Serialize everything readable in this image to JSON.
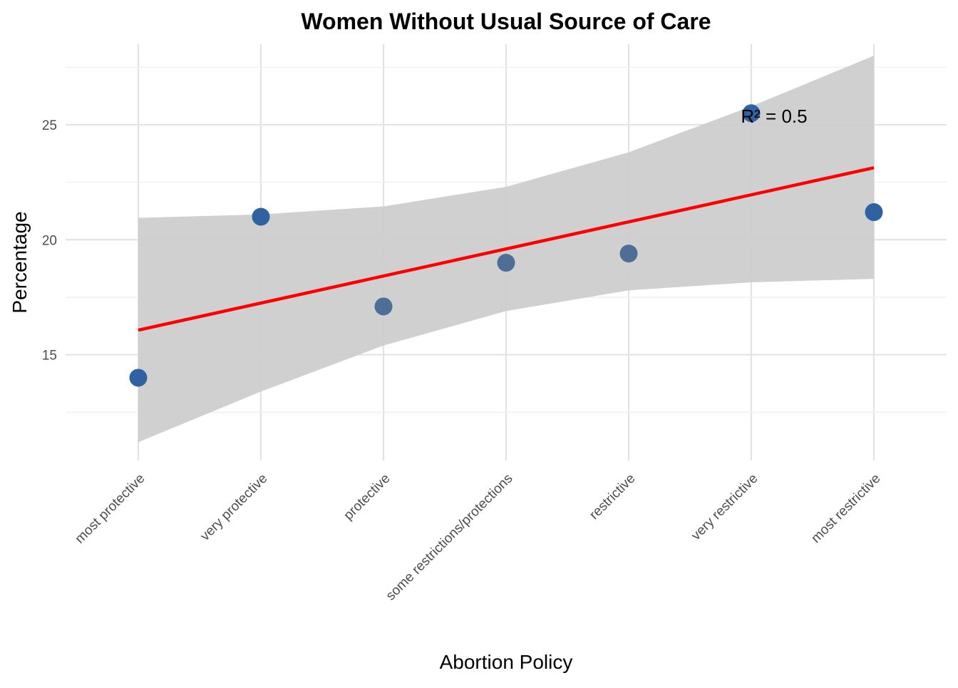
{
  "chart_data": {
    "type": "scatter",
    "title": "Women Without Usual Source of Care",
    "xlabel": "Abortion Policy",
    "ylabel": "Percentage",
    "categories": [
      "most protective",
      "very protective",
      "protective",
      "some restrictions/protections",
      "restrictive",
      "very restrictive",
      "most restrictive"
    ],
    "values": [
      14.0,
      21.0,
      17.1,
      19.0,
      19.4,
      25.5,
      21.2
    ],
    "ylim": [
      10.4,
      28.5
    ],
    "yticks": [
      15,
      20,
      25
    ],
    "grid": true,
    "point_colors": [
      "#2e62a1",
      "#2e62a1",
      "#4d6f95",
      "#4d6f95",
      "#4d6f95",
      "#2e62a1",
      "#2e62a1"
    ],
    "trend_line": {
      "start": 16.07,
      "end": 23.13,
      "color": "#ff0000"
    },
    "confidence_band": {
      "upper": [
        20.95,
        21.1,
        21.45,
        22.3,
        23.8,
        25.8,
        28.0
      ],
      "lower": [
        11.2,
        13.4,
        15.4,
        16.9,
        17.8,
        18.15,
        18.3
      ],
      "color": "#cccccc"
    },
    "annotation": {
      "text": "R² = 0.5",
      "category_index": 5,
      "y": 25.4
    }
  }
}
